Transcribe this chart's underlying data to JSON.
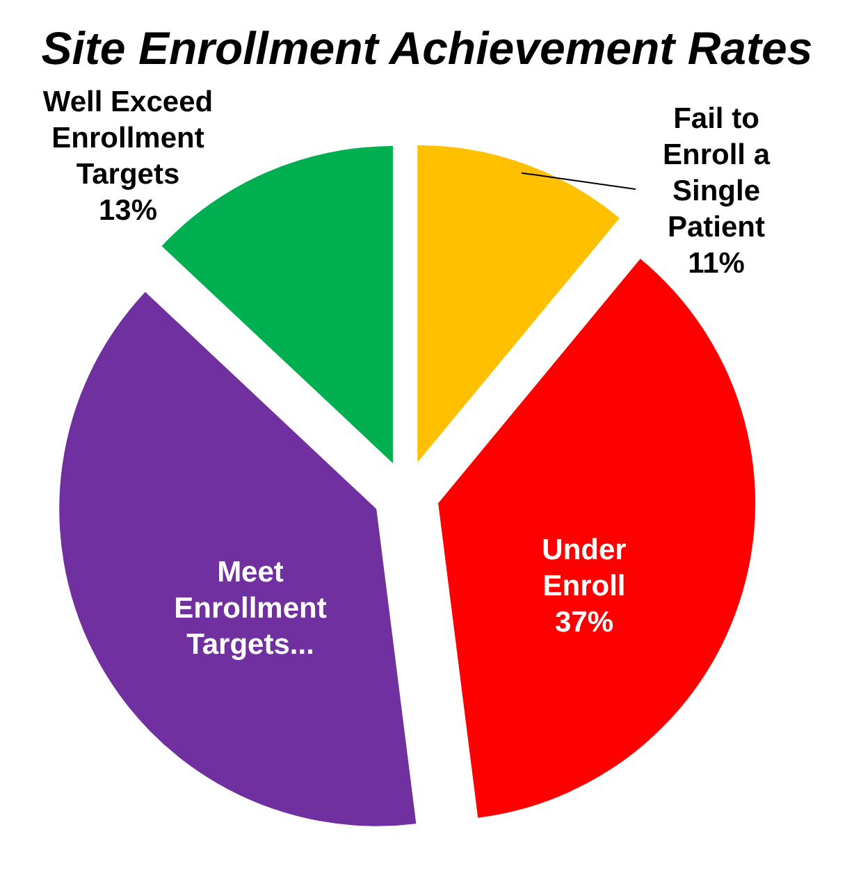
{
  "chart_data": {
    "type": "pie",
    "title": "Site Enrollment Achievement Rates",
    "categories": [
      "Fail to Enroll a Single Patient",
      "Under Enroll",
      "Meet Enrollment Targets...",
      "Well Exceed Enrollment Targets"
    ],
    "values": [
      11,
      37,
      39,
      13
    ],
    "colors": [
      "#ffc000",
      "#ff0000",
      "#7030a0",
      "#00b050"
    ],
    "value_labels": [
      "11%",
      "37%",
      null,
      "13%"
    ],
    "legend": false
  }
}
